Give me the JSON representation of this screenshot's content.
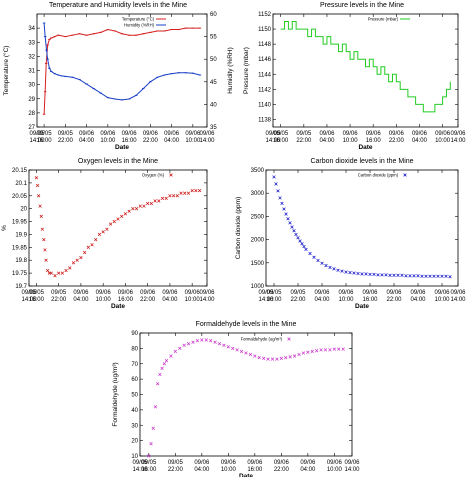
{
  "colors": {
    "temperature": "#d62020",
    "humidity": "#1a3fc4",
    "pressure": "#22cc22",
    "oxygen": "#cc1111",
    "co2": "#1010c8",
    "formaldehyde": "#cc33cc"
  },
  "chart_data": [
    {
      "id": "temp_humidity",
      "type": "line",
      "title": "Temperature and Humidity levels in the Mine",
      "xlabel": "Date",
      "ylabel": "Temperature (°C)",
      "y2label": "Humidity (%RH)",
      "xlim": [
        0,
        48
      ],
      "xticks": [
        0,
        2,
        8,
        14,
        20,
        26,
        32,
        38,
        44,
        48
      ],
      "xticklabels": [
        [
          "09/05",
          "14:00"
        ],
        [
          "09/05",
          "16:00"
        ],
        [
          "09/05",
          "22:00"
        ],
        [
          "09/06",
          "04:00"
        ],
        [
          "09/06",
          "10:00"
        ],
        [
          "09/06",
          "16:00"
        ],
        [
          "09/06",
          "22:00"
        ],
        [
          "09/06",
          "04:00"
        ],
        [
          "09/06",
          "10:00"
        ],
        [
          "09/06",
          "14:00"
        ]
      ],
      "ylim": [
        27,
        35
      ],
      "yticks": [
        27,
        28,
        29,
        30,
        31,
        32,
        33,
        34
      ],
      "y2lim": [
        35,
        60
      ],
      "y2ticks": [
        35,
        40,
        45,
        50,
        55,
        60
      ],
      "legend": [
        "Temperature (°C)",
        "Humidity (%RH)"
      ],
      "legend_position": "top-right",
      "series": [
        {
          "name": "Temperature (°C)",
          "axis": "y",
          "x": [
            2,
            2.3,
            2.6,
            3,
            3.5,
            4,
            5,
            6,
            8,
            10,
            12,
            14,
            16,
            18,
            20,
            22,
            24,
            26,
            28,
            30,
            32,
            34,
            36,
            38,
            40,
            42,
            44,
            46
          ],
          "y": [
            27.9,
            29.5,
            31.5,
            32.8,
            33.2,
            33.3,
            33.4,
            33.5,
            33.4,
            33.5,
            33.6,
            33.5,
            33.6,
            33.7,
            33.9,
            33.8,
            33.6,
            33.5,
            33.5,
            33.6,
            33.7,
            33.8,
            33.8,
            33.9,
            33.9,
            34.0,
            34.0,
            34.0
          ]
        },
        {
          "name": "Humidity (%RH)",
          "axis": "y2",
          "x": [
            2,
            2.3,
            2.7,
            3,
            3.5,
            4,
            5,
            6,
            7,
            8,
            10,
            12,
            14,
            16,
            18,
            20,
            22,
            24,
            26,
            28,
            30,
            32,
            34,
            36,
            38,
            40,
            42,
            44,
            46
          ],
          "y": [
            58,
            55,
            52,
            50,
            48,
            47.3,
            46.8,
            46.5,
            46.3,
            46.2,
            46.0,
            45.5,
            44.5,
            43.5,
            42.5,
            41.5,
            41.2,
            41.0,
            41.2,
            42.0,
            43.5,
            45.0,
            46.0,
            46.5,
            46.8,
            47.0,
            47.0,
            46.9,
            46.5
          ]
        }
      ]
    },
    {
      "id": "pressure",
      "type": "line",
      "title": "Pressure levels in the Mine",
      "xlabel": "Date",
      "ylabel": "Pressure (mbar)",
      "xlim": [
        0,
        48
      ],
      "xticks": [
        0,
        2,
        8,
        14,
        20,
        26,
        32,
        38,
        44,
        48
      ],
      "xticklabels": [
        [
          "09/05",
          "14:00"
        ],
        [
          "09/05",
          "16:00"
        ],
        [
          "09/05",
          "22:00"
        ],
        [
          "09/06",
          "04:00"
        ],
        [
          "09/06",
          "10:00"
        ],
        [
          "09/06",
          "16:00"
        ],
        [
          "09/06",
          "22:00"
        ],
        [
          "09/06",
          "04:00"
        ],
        [
          "09/06",
          "10:00"
        ],
        [
          "09/06",
          "14:00"
        ]
      ],
      "ylim": [
        1137,
        1152
      ],
      "yticks": [
        1138,
        1140,
        1142,
        1144,
        1146,
        1148,
        1150,
        1152
      ],
      "legend": [
        "Pressure (mbar)"
      ],
      "legend_position": "top-right",
      "series": [
        {
          "name": "Pressure (mbar)",
          "x": [
            2,
            3,
            4,
            5,
            6,
            7,
            8,
            9,
            10,
            11,
            12,
            13,
            14,
            15,
            16,
            17,
            18,
            19,
            20,
            21,
            22,
            23,
            24,
            25,
            26,
            27,
            28,
            29,
            30,
            31,
            32,
            33,
            34,
            35,
            36,
            37,
            38,
            39,
            40,
            41,
            42,
            43,
            44,
            45,
            46
          ],
          "y": [
            1150,
            1151,
            1150,
            1151,
            1150,
            1150,
            1150,
            1149,
            1150,
            1149,
            1149,
            1148,
            1149,
            1148,
            1148,
            1147,
            1148,
            1147,
            1146,
            1147,
            1146,
            1146,
            1145,
            1146,
            1145,
            1144,
            1145,
            1144,
            1143,
            1144,
            1143,
            1142,
            1142,
            1141,
            1141,
            1140,
            1140,
            1139,
            1139,
            1139,
            1140,
            1140,
            1141,
            1142,
            1143
          ]
        }
      ]
    },
    {
      "id": "oxygen",
      "type": "scatter",
      "title": "Oxygen levels in the Mine",
      "xlabel": "Date",
      "ylabel": "%",
      "xlim": [
        0,
        48
      ],
      "xticks": [
        0,
        2,
        8,
        14,
        20,
        26,
        32,
        38,
        44,
        48
      ],
      "xticklabels": [
        [
          "09/05",
          "14:00"
        ],
        [
          "09/05",
          "16:00"
        ],
        [
          "09/05",
          "22:00"
        ],
        [
          "09/06",
          "04:00"
        ],
        [
          "09/06",
          "10:00"
        ],
        [
          "09/06",
          "16:00"
        ],
        [
          "09/06",
          "22:00"
        ],
        [
          "09/06",
          "04:00"
        ],
        [
          "09/06",
          "10:00"
        ],
        [
          "09/06",
          "14:00"
        ]
      ],
      "ylim": [
        19.7,
        20.15
      ],
      "yticks": [
        19.7,
        19.75,
        19.8,
        19.85,
        19.9,
        19.95,
        20.0,
        20.05,
        20.1,
        20.15
      ],
      "legend": [
        "Oxygen (%)"
      ],
      "legend_position": "top-right",
      "series": [
        {
          "name": "Oxygen (%)",
          "x": [
            2,
            2.3,
            2.6,
            3,
            3.3,
            3.6,
            4,
            4.3,
            4.6,
            5,
            5.5,
            6,
            7,
            8,
            9,
            10,
            11,
            12,
            13,
            14,
            15,
            16,
            17,
            18,
            19,
            20,
            21,
            22,
            23,
            24,
            25,
            26,
            27,
            28,
            29,
            30,
            31,
            32,
            33,
            34,
            35,
            36,
            37,
            38,
            39,
            40,
            41,
            42,
            43,
            44,
            45,
            46
          ],
          "y": [
            20.12,
            20.09,
            20.05,
            20.01,
            19.97,
            19.92,
            19.88,
            19.84,
            19.8,
            19.76,
            19.75,
            19.75,
            19.74,
            19.75,
            19.75,
            19.76,
            19.77,
            19.79,
            19.8,
            19.81,
            19.83,
            19.85,
            19.86,
            19.88,
            19.9,
            19.91,
            19.92,
            19.94,
            19.95,
            19.96,
            19.97,
            19.98,
            19.99,
            20.0,
            20.0,
            20.01,
            20.01,
            20.02,
            20.02,
            20.03,
            20.03,
            20.04,
            20.04,
            20.05,
            20.05,
            20.05,
            20.06,
            20.06,
            20.06,
            20.07,
            20.07,
            20.07
          ]
        }
      ]
    },
    {
      "id": "co2",
      "type": "scatter",
      "title": "Carbon dioxide levels in the Mine",
      "xlabel": "Date",
      "ylabel": "Carbon dioxide (ppm)",
      "xlim": [
        0,
        48
      ],
      "xticks": [
        0,
        2,
        8,
        14,
        20,
        26,
        32,
        38,
        44,
        48
      ],
      "xticklabels": [
        [
          "09/05",
          "14:00"
        ],
        [
          "09/05",
          "16:00"
        ],
        [
          "09/05",
          "22:00"
        ],
        [
          "09/06",
          "04:00"
        ],
        [
          "09/06",
          "10:00"
        ],
        [
          "09/06",
          "16:00"
        ],
        [
          "09/06",
          "22:00"
        ],
        [
          "09/06",
          "04:00"
        ],
        [
          "09/06",
          "10:00"
        ],
        [
          "09/06",
          "14:00"
        ]
      ],
      "ylim": [
        1000,
        3500
      ],
      "yticks": [
        1000,
        1500,
        2000,
        2500,
        3000,
        3500
      ],
      "legend": [
        "Carbon dioxide (ppm)"
      ],
      "legend_position": "top-right",
      "series": [
        {
          "name": "Carbon dioxide (ppm)",
          "x": [
            2,
            2.5,
            3,
            3.5,
            4,
            4.5,
            5,
            5.5,
            6,
            6.5,
            7,
            7.5,
            8,
            8.5,
            9,
            9.5,
            10,
            11,
            12,
            13,
            14,
            15,
            16,
            17,
            18,
            19,
            20,
            21,
            22,
            23,
            24,
            25,
            26,
            27,
            28,
            29,
            30,
            31,
            32,
            33,
            34,
            35,
            36,
            37,
            38,
            39,
            40,
            41,
            42,
            43,
            44,
            45,
            46
          ],
          "y": [
            3350,
            3200,
            3050,
            2900,
            2780,
            2660,
            2550,
            2450,
            2360,
            2270,
            2190,
            2110,
            2040,
            1970,
            1910,
            1850,
            1790,
            1700,
            1620,
            1550,
            1490,
            1440,
            1400,
            1370,
            1340,
            1320,
            1300,
            1290,
            1280,
            1270,
            1260,
            1260,
            1250,
            1250,
            1240,
            1240,
            1240,
            1230,
            1230,
            1230,
            1230,
            1220,
            1220,
            1220,
            1220,
            1210,
            1210,
            1210,
            1210,
            1210,
            1210,
            1210,
            1200
          ]
        }
      ]
    },
    {
      "id": "formaldehyde",
      "type": "scatter",
      "title": "Formaldehyde levels in the Mine",
      "xlabel": "Date",
      "ylabel": "Formaldehyde (ug/m³)",
      "xlim": [
        0,
        48
      ],
      "xticks": [
        0,
        2,
        8,
        14,
        20,
        26,
        32,
        38,
        44,
        48
      ],
      "xticklabels": [
        [
          "09/05",
          "14:00"
        ],
        [
          "09/05",
          "16:00"
        ],
        [
          "09/05",
          "22:00"
        ],
        [
          "09/06",
          "04:00"
        ],
        [
          "09/06",
          "10:00"
        ],
        [
          "09/06",
          "16:00"
        ],
        [
          "09/06",
          "22:00"
        ],
        [
          "09/06",
          "04:00"
        ],
        [
          "09/06",
          "10:00"
        ],
        [
          "09/06",
          "14:00"
        ]
      ],
      "ylim": [
        10,
        90
      ],
      "yticks": [
        10,
        20,
        30,
        40,
        50,
        60,
        70,
        80,
        90
      ],
      "legend": [
        "Formaldehyde (ug/m³)"
      ],
      "legend_position": "top-right",
      "series": [
        {
          "name": "Formaldehyde (ug/m³)",
          "x": [
            2,
            2.5,
            3,
            3.5,
            4,
            4.5,
            5,
            5.5,
            6,
            7,
            8,
            9,
            10,
            11,
            12,
            13,
            14,
            15,
            16,
            17,
            18,
            19,
            20,
            21,
            22,
            23,
            24,
            25,
            26,
            27,
            28,
            29,
            30,
            31,
            32,
            33,
            34,
            35,
            36,
            37,
            38,
            39,
            40,
            41,
            42,
            43,
            44,
            45,
            46
          ],
          "y": [
            10,
            18,
            28,
            42,
            57,
            63,
            67,
            70,
            72,
            75,
            78,
            80,
            82,
            83,
            84,
            85,
            85.5,
            85.5,
            85,
            84,
            83,
            82,
            81,
            80,
            79,
            78,
            77,
            76,
            75,
            74,
            73.5,
            73,
            73,
            73,
            73.5,
            74,
            74.5,
            75,
            76,
            77,
            77.5,
            78,
            78.5,
            79,
            79,
            79,
            79.5,
            79.5,
            79.5
          ]
        }
      ]
    }
  ]
}
